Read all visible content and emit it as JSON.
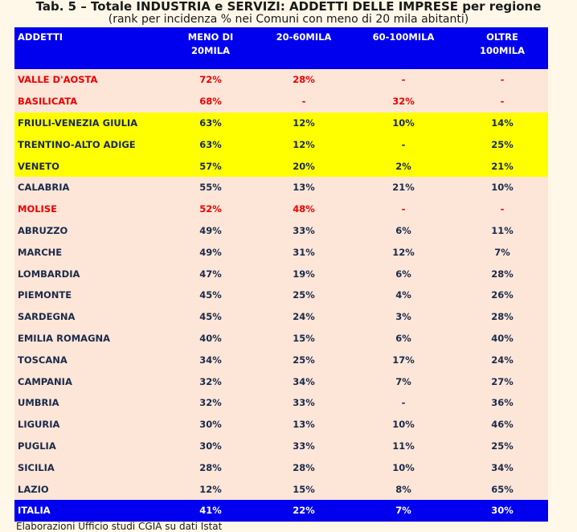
{
  "title": "Tab. 5 – Totale INDUSTRIA e SERVIZI: ADDETTI DELLE IMPRESE per regione",
  "subtitle": "(rank per incidenza % nei Comuni con meno di 20 mila abitanti)",
  "footnote": "Elaborazioni Ufficio studi CGIA su dati Istat",
  "colors": {
    "header_bg": "#0000ee",
    "header_text": "#ffffff",
    "table_bg": "#fde6d8",
    "highlight_red_text": "#ee0000",
    "highlight_yellow_bg": "#ffff00",
    "body_text": "#1a2a4a"
  },
  "chart_data": {
    "type": "table",
    "columns": [
      "ADDETTI",
      "MENO DI\n20MILA",
      "20-60MILA",
      "60-100MILA",
      "OLTRE\n100MILA"
    ],
    "rows": [
      {
        "region": "VALLE D'AOSTA",
        "values": [
          "72%",
          "28%",
          "-",
          "-"
        ],
        "highlight": "red"
      },
      {
        "region": "BASILICATA",
        "values": [
          "68%",
          "-",
          "32%",
          "-"
        ],
        "highlight": "red"
      },
      {
        "region": "FRIULI-VENEZIA GIULIA",
        "values": [
          "63%",
          "12%",
          "10%",
          "14%"
        ],
        "highlight": "yellow"
      },
      {
        "region": "TRENTINO-ALTO ADIGE",
        "values": [
          "63%",
          "12%",
          "-",
          "25%"
        ],
        "highlight": "yellow"
      },
      {
        "region": "VENETO",
        "values": [
          "57%",
          "20%",
          "2%",
          "21%"
        ],
        "highlight": "yellow"
      },
      {
        "region": "CALABRIA",
        "values": [
          "55%",
          "13%",
          "21%",
          "10%"
        ],
        "highlight": ""
      },
      {
        "region": "MOLISE",
        "values": [
          "52%",
          "48%",
          "-",
          "-"
        ],
        "highlight": "red"
      },
      {
        "region": "ABRUZZO",
        "values": [
          "49%",
          "33%",
          "6%",
          "11%"
        ],
        "highlight": ""
      },
      {
        "region": "MARCHE",
        "values": [
          "49%",
          "31%",
          "12%",
          "7%"
        ],
        "highlight": ""
      },
      {
        "region": "LOMBARDIA",
        "values": [
          "47%",
          "19%",
          "6%",
          "28%"
        ],
        "highlight": ""
      },
      {
        "region": "PIEMONTE",
        "values": [
          "45%",
          "25%",
          "4%",
          "26%"
        ],
        "highlight": ""
      },
      {
        "region": "SARDEGNA",
        "values": [
          "45%",
          "24%",
          "3%",
          "28%"
        ],
        "highlight": ""
      },
      {
        "region": "EMILIA ROMAGNA",
        "values": [
          "40%",
          "15%",
          "6%",
          "40%"
        ],
        "highlight": ""
      },
      {
        "region": "TOSCANA",
        "values": [
          "34%",
          "25%",
          "17%",
          "24%"
        ],
        "highlight": ""
      },
      {
        "region": "CAMPANIA",
        "values": [
          "32%",
          "34%",
          "7%",
          "27%"
        ],
        "highlight": ""
      },
      {
        "region": "UMBRIA",
        "values": [
          "32%",
          "33%",
          "-",
          "36%"
        ],
        "highlight": ""
      },
      {
        "region": "LIGURIA",
        "values": [
          "30%",
          "13%",
          "10%",
          "46%"
        ],
        "highlight": ""
      },
      {
        "region": "PUGLIA",
        "values": [
          "30%",
          "33%",
          "11%",
          "25%"
        ],
        "highlight": ""
      },
      {
        "region": "SICILIA",
        "values": [
          "28%",
          "28%",
          "10%",
          "34%"
        ],
        "highlight": ""
      },
      {
        "region": "LAZIO",
        "values": [
          "12%",
          "15%",
          "8%",
          "65%"
        ],
        "highlight": ""
      }
    ],
    "total": {
      "region": "ITALIA",
      "values": [
        "41%",
        "22%",
        "7%",
        "30%"
      ]
    }
  }
}
